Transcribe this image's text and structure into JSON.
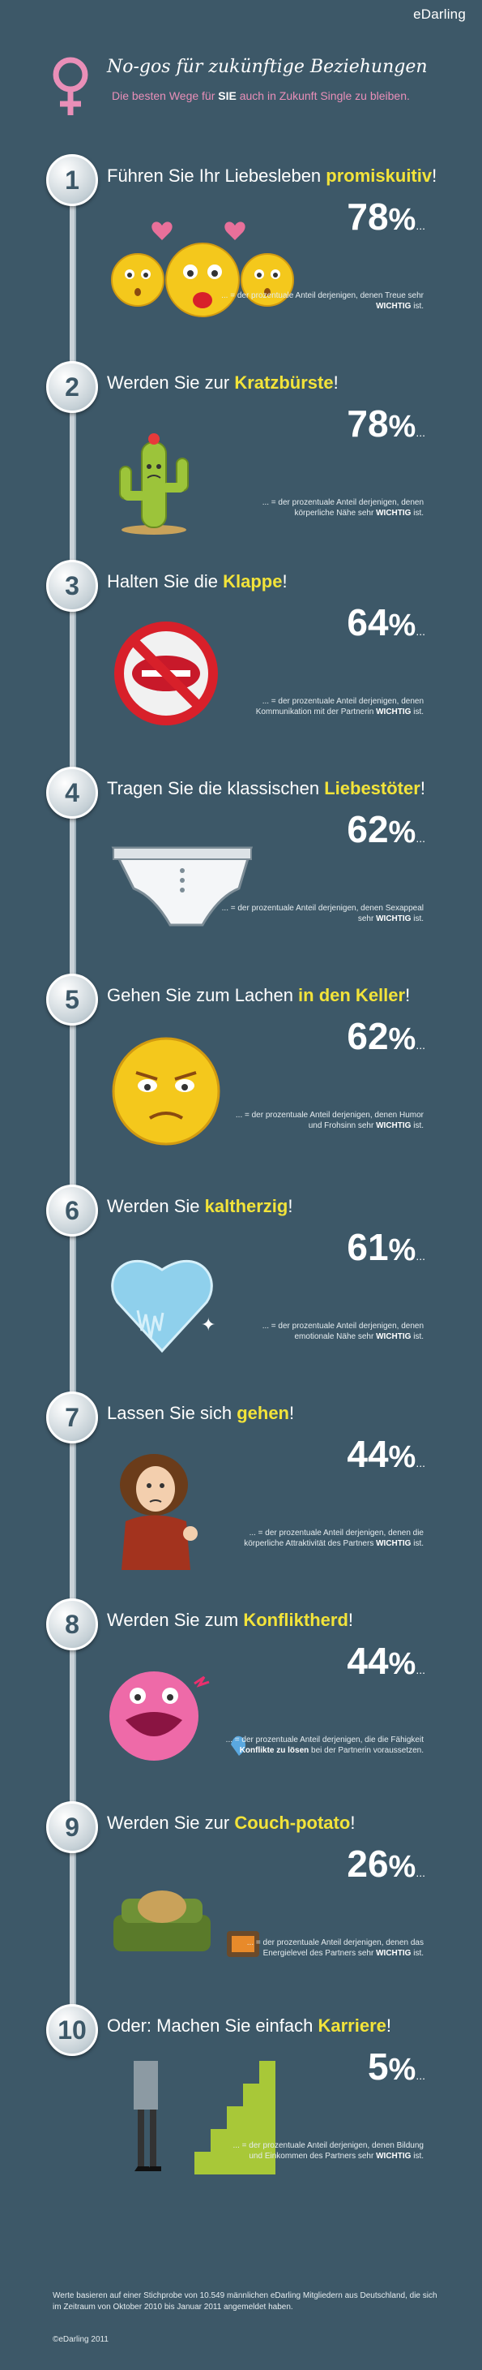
{
  "brand": "eDarling",
  "header": {
    "title": "No-gos für zukünftige Beziehungen",
    "subtitle_pre": "Die besten Wege für ",
    "subtitle_bold": "SIE",
    "subtitle_post": " auch in Zukunft Single zu bleiben."
  },
  "items": [
    {
      "num": "1",
      "pre": "Führen Sie Ihr Liebesleben ",
      "hl": "promiskuitiv",
      "post": "!",
      "value": "78",
      "note_pre": "... = der prozentuale Anteil derjenigen, denen Treue sehr ",
      "note_bold": "WICHTIG",
      "note_post": " ist.",
      "icon": "smiley-faces-icon"
    },
    {
      "num": "2",
      "pre": "Werden Sie zur ",
      "hl": "Kratzbürste",
      "post": "!",
      "value": "78",
      "note_pre": "... = der prozentuale Anteil derjenigen, denen körperliche Nähe sehr ",
      "note_bold": "WICHTIG",
      "note_post": " ist.",
      "icon": "cactus-icon"
    },
    {
      "num": "3",
      "pre": "Halten Sie die ",
      "hl": "Klappe",
      "post": "!",
      "value": "64",
      "note_pre": "... = der prozentuale Anteil derjenigen, denen Kommunikation mit der Partnerin ",
      "note_bold": "WICHTIG",
      "note_post": " ist.",
      "icon": "forbidden-lips-icon"
    },
    {
      "num": "4",
      "pre": "Tragen Sie die klassischen ",
      "hl": "Liebestöter",
      "post": "!",
      "value": "62",
      "note_pre": "... = der prozentuale Anteil derjenigen, denen Sexappeal sehr ",
      "note_bold": "WICHTIG",
      "note_post": " ist.",
      "icon": "underpants-icon"
    },
    {
      "num": "5",
      "pre": "Gehen Sie zum Lachen ",
      "hl": "in den Keller",
      "post": "!",
      "value": "62",
      "note_pre": "... = der prozentuale Anteil derjenigen, denen Humor und Frohsinn sehr ",
      "note_bold": "WICHTIG",
      "note_post": " ist.",
      "icon": "grumpy-smiley-icon"
    },
    {
      "num": "6",
      "pre": "Werden Sie ",
      "hl": "kaltherzig",
      "post": "!",
      "value": "61",
      "note_pre": "... = der prozentuale Anteil derjenigen, denen emotionale Nähe sehr ",
      "note_bold": "WICHTIG",
      "note_post": " ist.",
      "icon": "frozen-heart-icon"
    },
    {
      "num": "7",
      "pre": "Lassen Sie sich ",
      "hl": "gehen",
      "post": "!",
      "value": "44",
      "note_pre": "... = der prozentuale Anteil derjenigen, denen die körperliche Attraktivität des Partners ",
      "note_bold": "WICHTIG",
      "note_post": " ist.",
      "icon": "messy-woman-icon"
    },
    {
      "num": "8",
      "pre": "Werden Sie zum ",
      "hl": "Konfliktherd",
      "post": "!",
      "value": "44",
      "note_pre": "... = der prozentuale Anteil derjenigen, die die Fähigkeit ",
      "note_bold": "Konflikte zu lösen",
      "note_post": " bei der Partnerin voraussetzen.",
      "icon": "angry-monster-icon"
    },
    {
      "num": "9",
      "pre": "Werden Sie zur ",
      "hl": "Couch-potato",
      "post": "!",
      "value": "26",
      "note_pre": "... = der prozentuale Anteil derjenigen, denen das Energielevel des Partners sehr ",
      "note_bold": "WICHTIG",
      "note_post": " ist.",
      "icon": "couch-potato-icon"
    },
    {
      "num": "10",
      "pre": "Oder: Machen Sie einfach ",
      "hl": "Karriere",
      "post": "!",
      "value": "5",
      "note_pre": "... = der prozentuale Anteil derjenigen, denen Bildung und Einkommen des Partners sehr ",
      "note_bold": "WICHTIG",
      "note_post": " ist.",
      "icon": "career-stairs-icon"
    }
  ],
  "percent_sign": "%",
  "ellipsis": "...",
  "footer": {
    "note": "Werte basieren auf einer Stichprobe von 10.549 männlichen eDarling Mitgliedern aus Deutschland, die sich im Zeitraum von Oktober 2010 bis Januar 2011 angemeldet haben.",
    "copyright": "©eDarling 2011"
  },
  "colors": {
    "background": "#3d5868",
    "highlight": "#f2e33a",
    "accent_pink": "#e98fb8"
  }
}
